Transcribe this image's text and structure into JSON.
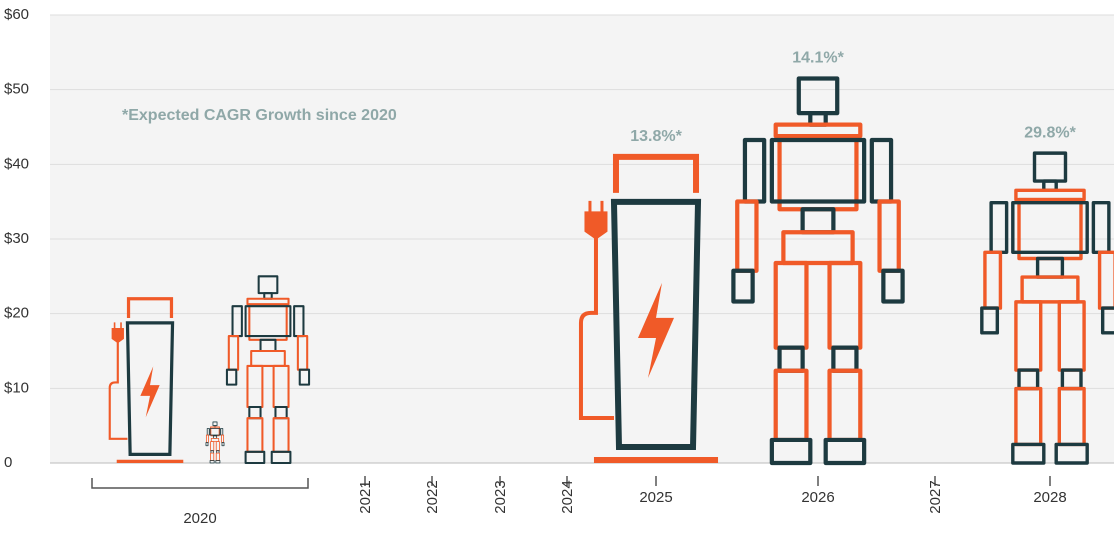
{
  "chart_data": {
    "type": "pictograph",
    "categories": [
      "2020",
      "2021",
      "2022",
      "2023",
      "2024",
      "2025",
      "2026",
      "2027",
      "2028"
    ],
    "series": [
      {
        "icon": "battery",
        "color": "#f05a28",
        "values": [
          22,
          null,
          null,
          null,
          null,
          41,
          null,
          null,
          null
        ]
      },
      {
        "icon": "robot",
        "color": "#f05a28",
        "values": [
          5.5,
          null,
          null,
          null,
          null,
          null,
          null,
          null,
          null
        ]
      },
      {
        "icon": "robot",
        "color": "#f05a28",
        "values": [
          25,
          null,
          null,
          null,
          null,
          null,
          51.5,
          null,
          41.5
        ]
      }
    ],
    "annotations": [
      {
        "text": "13.8%*",
        "category": "2025"
      },
      {
        "text": "14.1%*",
        "category": "2026"
      },
      {
        "text": "29.8%*",
        "category": "2028"
      }
    ],
    "note": "*Expected CAGR Growth since 2020",
    "ylim": [
      0,
      60
    ],
    "yticks": [
      0,
      {
        "value": 10,
        "label": "$10"
      },
      {
        "value": 20,
        "label": "$20"
      },
      {
        "value": 30,
        "label": "$30"
      },
      {
        "value": 40,
        "label": "$40"
      },
      {
        "value": 50,
        "label": "$50"
      },
      {
        "value": 60,
        "label": "$60"
      }
    ],
    "grid": true
  }
}
